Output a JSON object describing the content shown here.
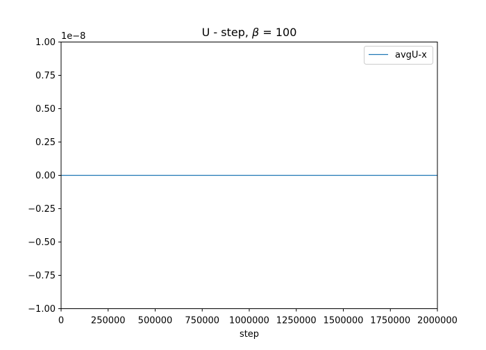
{
  "chart_data": {
    "type": "line",
    "title": "U - step, β = 100",
    "title_main": "U - step, ",
    "title_symbol": "β",
    "title_eq": " = 100",
    "xlabel": "step",
    "ylabel": "",
    "y_offset_label": "1e−8",
    "xlim": [
      0,
      2000000
    ],
    "ylim": [
      -1e-08,
      1e-08
    ],
    "x_ticks": [
      0,
      250000,
      500000,
      750000,
      1000000,
      1250000,
      1500000,
      1750000,
      2000000
    ],
    "x_tick_labels": [
      "0",
      "250000",
      "500000",
      "750000",
      "1000000",
      "1250000",
      "1500000",
      "1750000",
      "2000000"
    ],
    "y_ticks": [
      1.0,
      0.75,
      0.5,
      0.25,
      0.0,
      -0.25,
      -0.5,
      -0.75,
      -1.0
    ],
    "y_tick_labels": [
      "1.00",
      "0.75",
      "0.50",
      "0.25",
      "0.00",
      "−0.25",
      "−0.50",
      "−0.75",
      "−1.00"
    ],
    "grid": false,
    "legend_position": "top-right",
    "series": [
      {
        "name": "avgU-x",
        "color": "#1f77b4",
        "x": [
          0,
          2000000
        ],
        "y": [
          0,
          0
        ]
      }
    ]
  }
}
